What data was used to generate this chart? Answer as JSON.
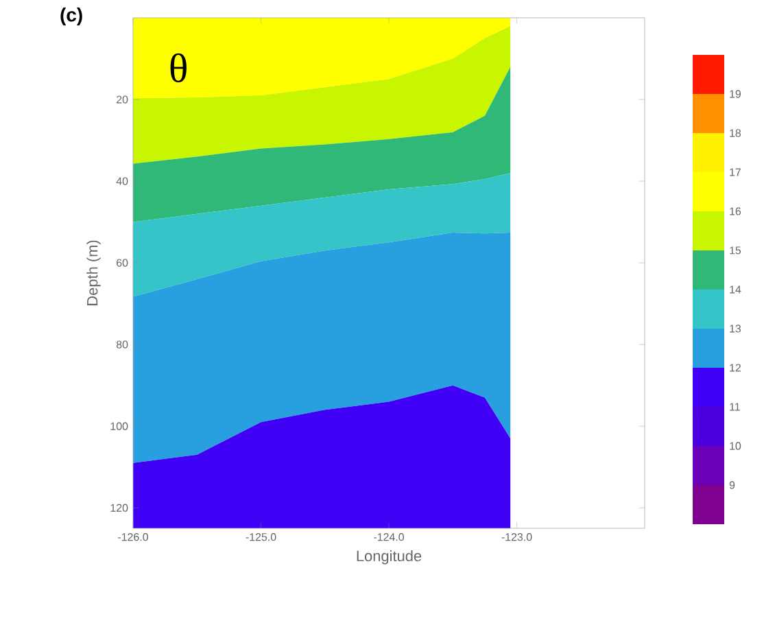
{
  "chart_data": {
    "type": "area",
    "stacked": true,
    "title": "(c)",
    "xlabel": "Longitude",
    "ylabel": "Depth (m)",
    "annotations": [
      "θ"
    ],
    "x": [
      -126,
      -125.5,
      -125,
      -124.5,
      -124,
      -123.5,
      -123.25,
      -123.05
    ],
    "series": [
      {
        "color": "#ffff00",
        "values": [
          19.7,
          19.5,
          19,
          17,
          15,
          10,
          5,
          2
        ]
      },
      {
        "color": "#c8f500",
        "values": [
          16,
          14.5,
          13,
          14,
          14.7,
          18,
          19,
          10
        ]
      },
      {
        "color": "#30b878",
        "values": [
          14.3,
          14,
          14,
          13,
          12.3,
          12.7,
          15.5,
          26
        ]
      },
      {
        "color": "#35c4c8",
        "values": [
          18.3,
          16,
          13.6,
          13,
          13,
          11.9,
          13.3,
          14.6
        ]
      },
      {
        "color": "#28a0e0",
        "values": [
          40.7,
          43,
          39.4,
          39,
          39,
          37.4,
          40.2,
          50.4
        ]
      },
      {
        "color": "#4000f5",
        "values": [
          16,
          18,
          26,
          29,
          31,
          35,
          32,
          22
        ]
      }
    ],
    "xlim": [
      -126,
      -122
    ],
    "ylim": [
      125,
      0
    ],
    "xticks": [
      {
        "value": -126,
        "label": "-126.0"
      },
      {
        "value": -125,
        "label": "-125.0"
      },
      {
        "value": -124,
        "label": "-124.0"
      },
      {
        "value": -123,
        "label": "-123.0"
      }
    ],
    "yticks": [
      20,
      40,
      60,
      80,
      100,
      120
    ],
    "clim": [
      8,
      20
    ],
    "cticks": [
      9,
      10,
      11,
      12,
      13,
      14,
      15,
      16,
      17,
      18,
      19
    ],
    "colors": [
      "#800090",
      "#6a00b8",
      "#4c00e0",
      "#4000f5",
      "#28a0e0",
      "#35c4c8",
      "#30b878",
      "#c8f500",
      "#ffff00",
      "#fff200",
      "#ff9000",
      "#ff1a00"
    ]
  }
}
